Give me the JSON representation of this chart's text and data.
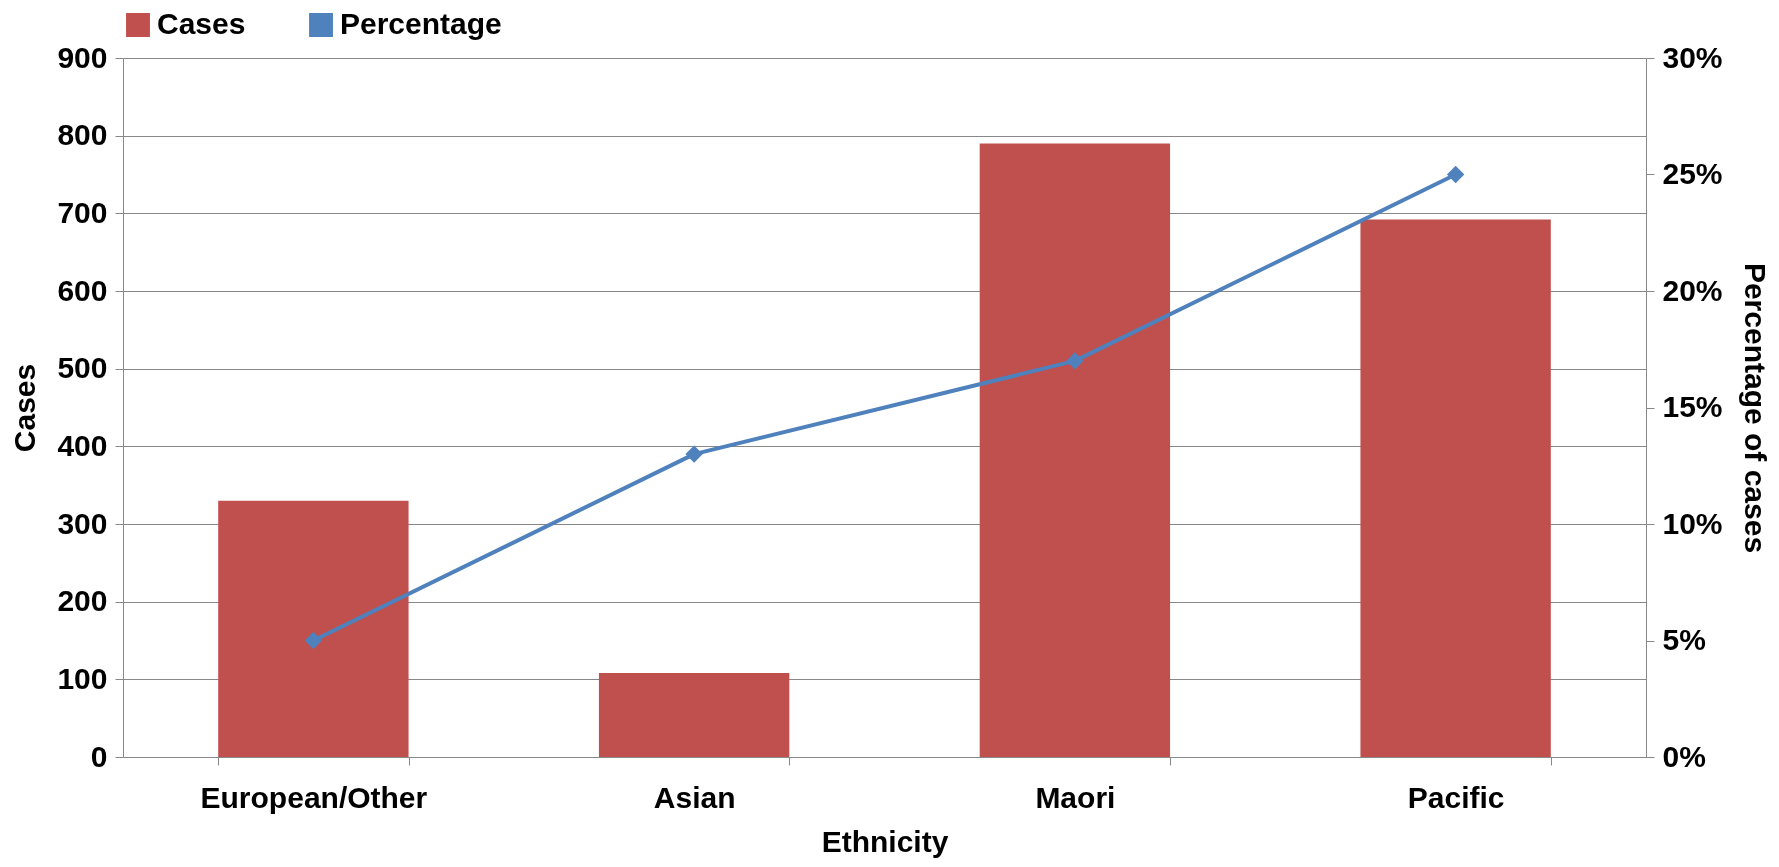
{
  "chart_data": {
    "type": "bar",
    "xlabel": "Ethnicity",
    "ylabel": "Cases",
    "y2label": "Percentage of cases",
    "categories": [
      "European/Other",
      "Asian",
      "Maori",
      "Pacific"
    ],
    "series": [
      {
        "name": "Cases",
        "color": "#c0504d",
        "values": [
          330,
          108,
          790,
          692
        ]
      },
      {
        "name": "Percentage",
        "type": "line",
        "axis": "y2",
        "color": "#4f81bd",
        "marker": "diamond",
        "values": [
          5,
          13,
          17,
          25
        ]
      }
    ],
    "ylim": [
      0,
      900
    ],
    "yticks": [
      0,
      100,
      200,
      300,
      400,
      500,
      600,
      700,
      800,
      900
    ],
    "y2lim": [
      0,
      30
    ],
    "y2ticks": [
      {
        "value": 0,
        "label": "0%"
      },
      {
        "value": 5,
        "label": "5%"
      },
      {
        "value": 10,
        "label": "10%"
      },
      {
        "value": 15,
        "label": "15%"
      },
      {
        "value": 20,
        "label": "20%"
      },
      {
        "value": 25,
        "label": "25%"
      },
      {
        "value": 30,
        "label": "30%"
      }
    ],
    "grid": "y",
    "legend": "top"
  }
}
